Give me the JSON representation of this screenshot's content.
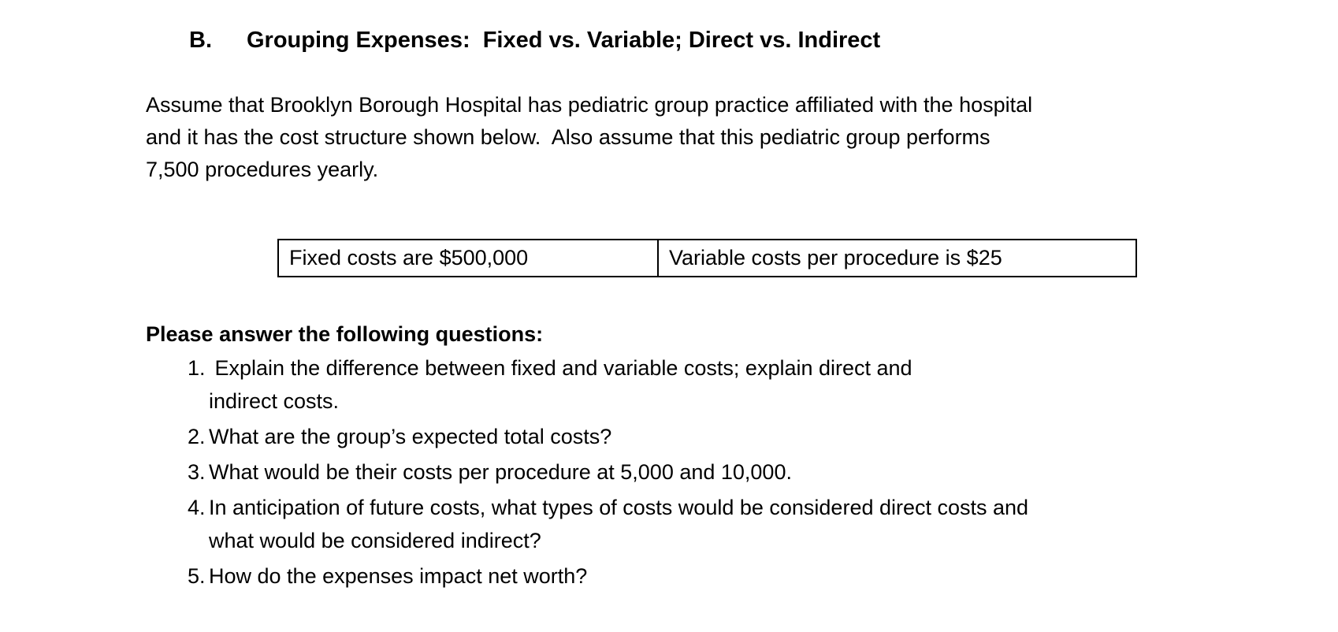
{
  "heading": {
    "label": "B.",
    "title": "Grouping Expenses:  Fixed vs. Variable; Direct vs. Indirect"
  },
  "intro": "Assume that Brooklyn Borough Hospital has pediatric group practice affiliated with the hospital\nand it has the cost structure shown below.  Also assume that this pediatric group performs\n7,500 procedures yearly.",
  "cost_table": {
    "cells": [
      "Fixed costs are $500,000",
      "Variable costs per procedure is $25"
    ]
  },
  "questions": {
    "heading": "Please answer the following questions:",
    "items": [
      {
        "number": "1.",
        "text": " Explain the difference between fixed and variable costs; explain direct and\nindirect costs."
      },
      {
        "number": "2.",
        "text": "What are the group’s expected total costs?"
      },
      {
        "number": "3.",
        "text": "What would be their costs per procedure at 5,000 and 10,000."
      },
      {
        "number": "4.",
        "text": "In anticipation of future costs, what types of costs would be considered direct costs and\nwhat would be considered indirect?"
      },
      {
        "number": "5.",
        "text": "How do the expenses impact net worth?"
      }
    ]
  }
}
